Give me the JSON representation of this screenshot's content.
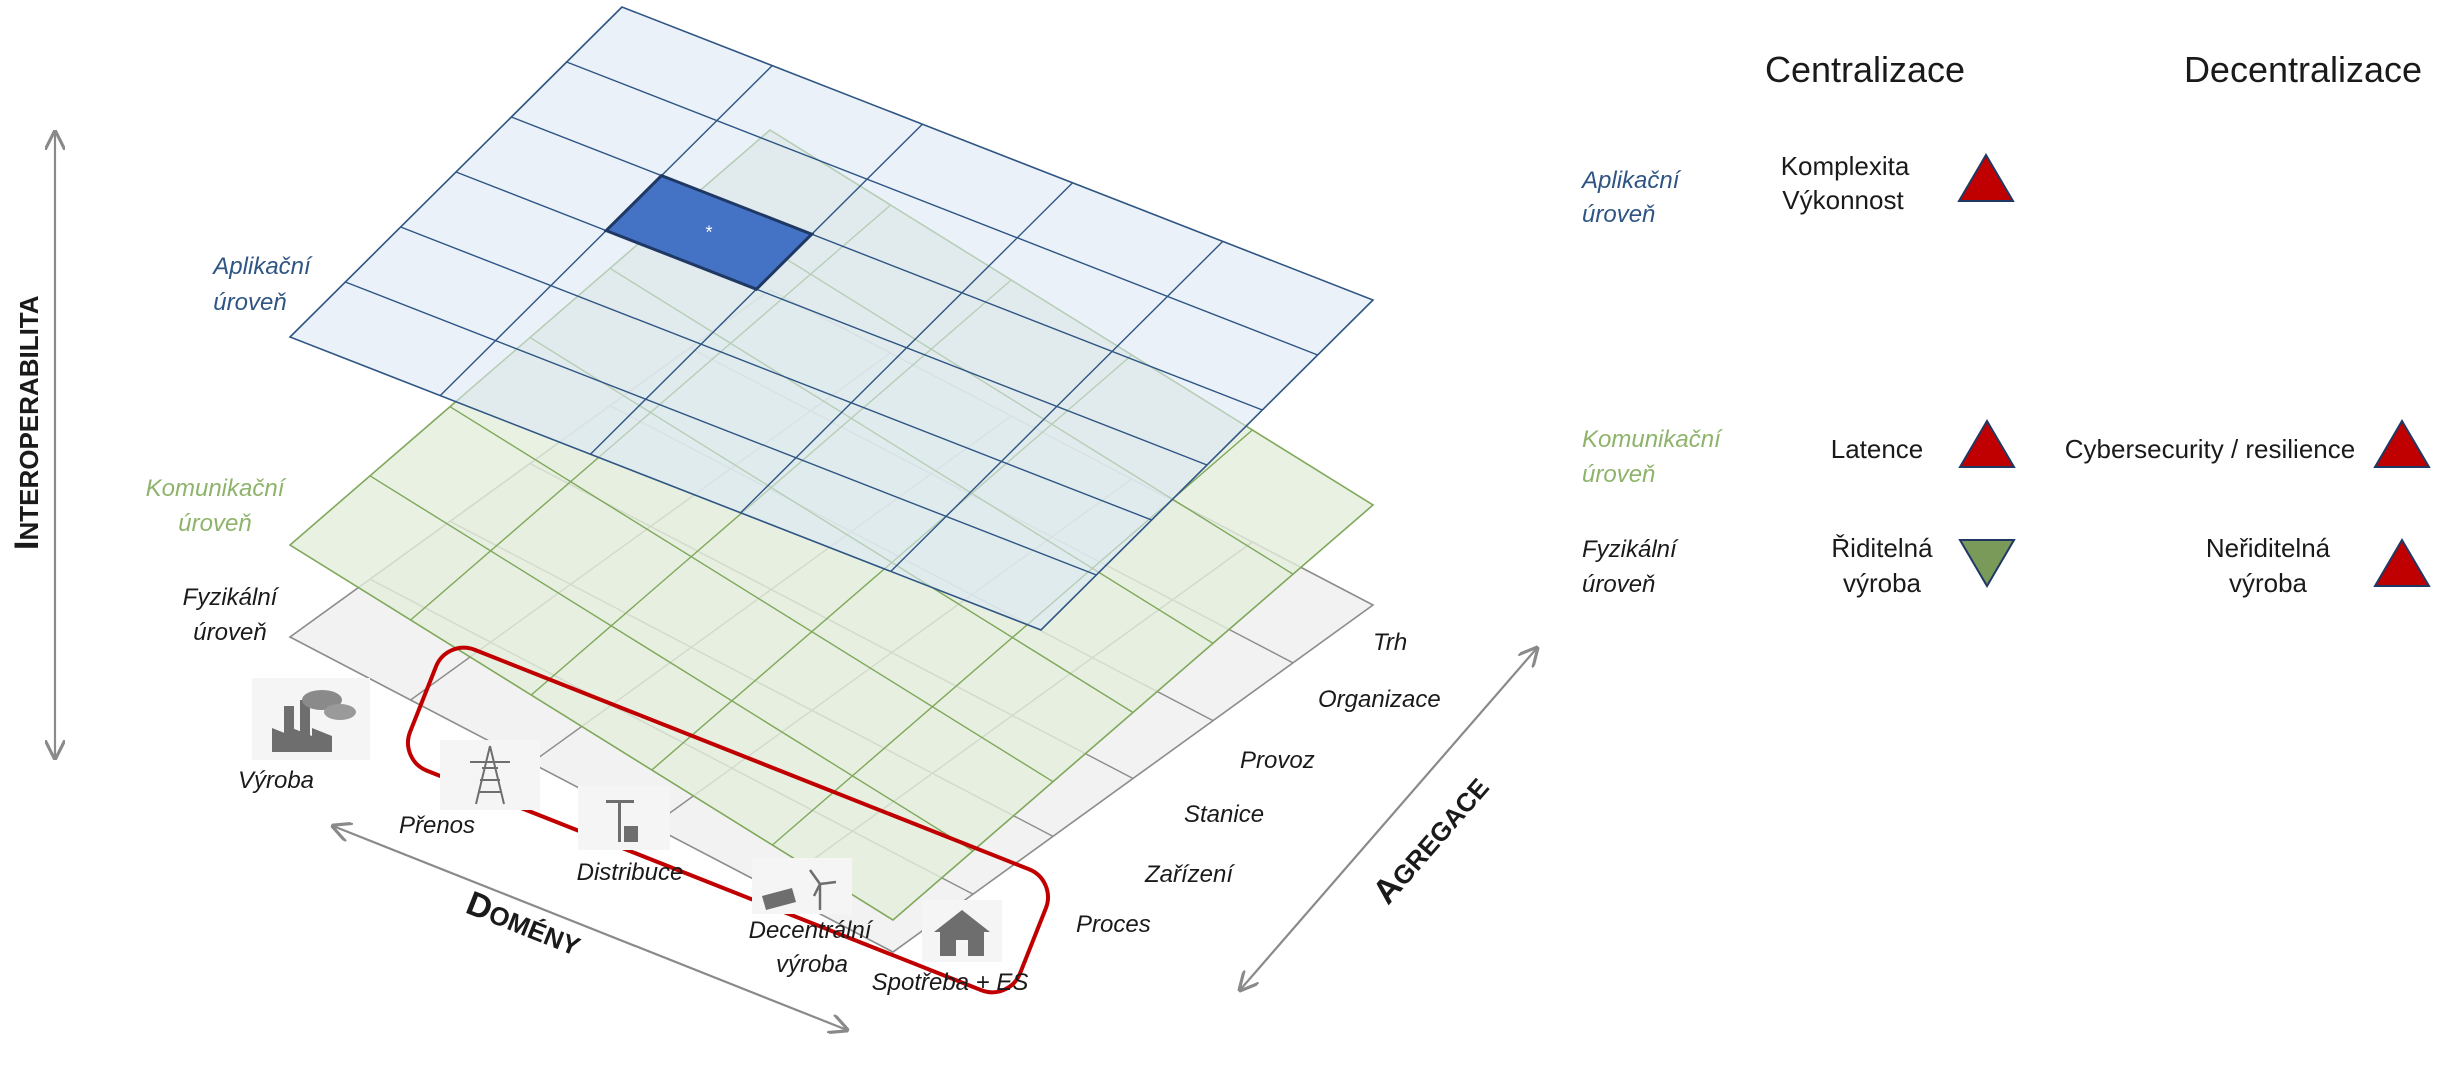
{
  "axes": {
    "vertical": {
      "first_letter": "I",
      "rest": "NTEROPERABILITA"
    },
    "domains": {
      "first_letter": "D",
      "rest": "OMÉNY"
    },
    "aggregation": {
      "first_letter": "A",
      "rest": "GREGACE"
    }
  },
  "layers": {
    "application": [
      "Aplikační",
      "úroveň"
    ],
    "communication": [
      "Komunikační",
      "úroveň"
    ],
    "physical": [
      "Fyzikální",
      "úroveň"
    ]
  },
  "highlight_cell_text": "*",
  "zones": [
    "Trh",
    "Organizace",
    "Provoz",
    "Stanice",
    "Zařízení",
    "Proces"
  ],
  "domain_items": [
    {
      "icon": "power-plant-icon",
      "label": [
        "Výroba"
      ]
    },
    {
      "icon": "transmission-tower-icon",
      "label": [
        "Přenos"
      ]
    },
    {
      "icon": "distribution-pole-icon",
      "label": [
        "Distribuce"
      ]
    },
    {
      "icon": "solar-wind-icon",
      "label": [
        "Decentrální",
        "výroba"
      ]
    },
    {
      "icon": "house-icon",
      "label": [
        "Spotřeba + ES"
      ]
    }
  ],
  "table": {
    "headers": {
      "centralization": "Centralizace",
      "decentralization": "Decentralizace"
    },
    "rows": [
      {
        "layer": [
          "Aplikační",
          "úroveň"
        ],
        "layer_color": "blue",
        "central": {
          "text": [
            "Komplexita",
            "Výkonnost"
          ],
          "trend": "up"
        },
        "decentral": null
      },
      {
        "layer": [
          "Komunikační",
          "úroveň"
        ],
        "layer_color": "green",
        "central": {
          "text": [
            "Latence"
          ],
          "trend": "up"
        },
        "decentral": {
          "text": [
            "Cybersecurity / resilience"
          ],
          "trend": "up"
        }
      },
      {
        "layer": [
          "Fyzikální",
          "úroveň"
        ],
        "layer_color": "black",
        "central": {
          "text": [
            "Řiditelná",
            "výroba"
          ],
          "trend": "down"
        },
        "decentral": {
          "text": [
            "Neřiditelná",
            "výroba"
          ],
          "trend": "up"
        }
      }
    ]
  },
  "colors": {
    "app_fill": "#dce8f5",
    "app_line": "#2e5583",
    "comm_fill": "#e3eedb",
    "comm_line": "#7fa85a",
    "phys_fill": "#f2f2f2",
    "phys_line": "#8c8c8c",
    "highlight": "#4472c4",
    "highlight_border": "#1f3864",
    "domain_box": "#c00000",
    "up_triangle": "#c00000",
    "down_triangle": "#7a9a5a",
    "triangle_stroke": "#1f3864",
    "arrow": "#8a8a8a"
  }
}
